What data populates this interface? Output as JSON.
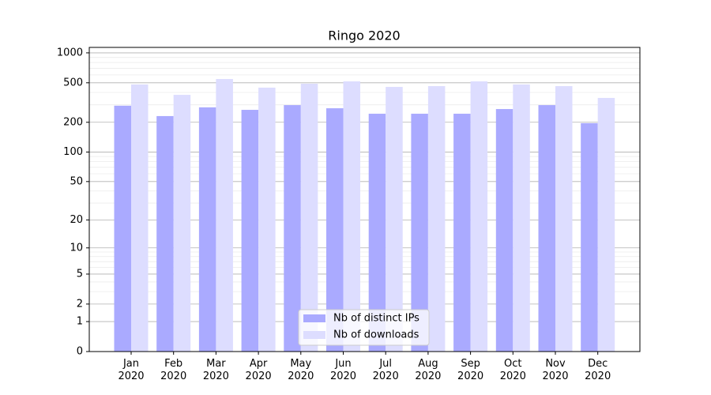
{
  "chart_data": {
    "type": "bar",
    "title": "Ringo 2020",
    "categories": [
      "Jan 2020",
      "Feb 2020",
      "Mar 2020",
      "Apr 2020",
      "May 2020",
      "Jun 2020",
      "Jul 2020",
      "Aug 2020",
      "Sep 2020",
      "Oct 2020",
      "Nov 2020",
      "Dec 2020"
    ],
    "series": [
      {
        "name": "Nb of distinct IPs",
        "color": "#aaaaff",
        "values": [
          294,
          231,
          283,
          267,
          298,
          277,
          244,
          244,
          244,
          272,
          298,
          196
        ]
      },
      {
        "name": "Nb of downloads",
        "color": "#ddddff",
        "values": [
          481,
          378,
          546,
          447,
          489,
          517,
          455,
          463,
          517,
          481,
          463,
          352
        ]
      }
    ],
    "yscale": "log1p",
    "ylim": [
      0,
      1135
    ],
    "yticks": [
      0,
      1,
      2,
      5,
      10,
      20,
      50,
      100,
      200,
      500,
      1000
    ],
    "yminorticks": [
      3,
      4,
      6,
      7,
      8,
      9,
      30,
      40,
      60,
      70,
      80,
      90,
      300,
      400,
      600,
      700,
      800,
      900
    ],
    "grid": true,
    "legend": "bottom-center"
  }
}
